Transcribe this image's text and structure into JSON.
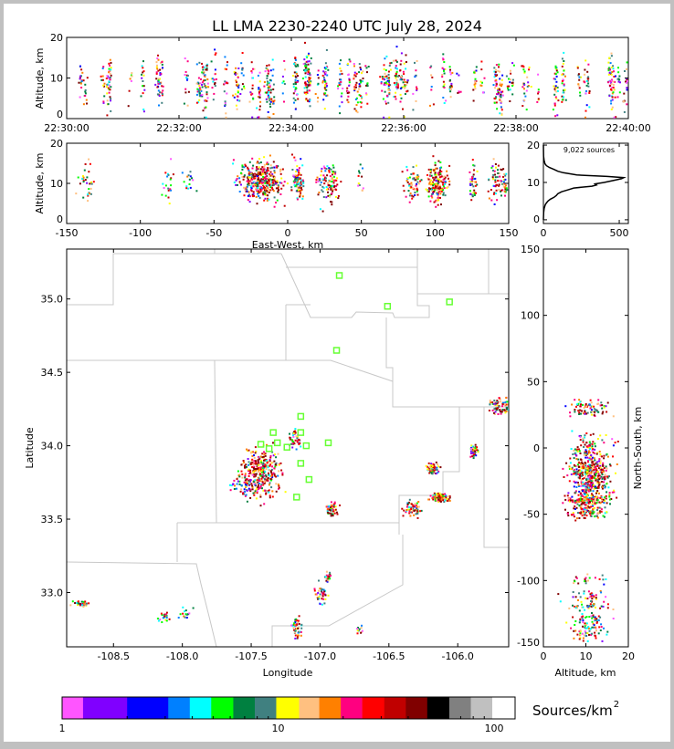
{
  "chart_data": {
    "title": "LL LMA 2230-2240 UTC July 28, 2024",
    "type": "scatter",
    "network_center": {
      "lon": -107.25,
      "lat": 34.0
    },
    "time_altitude": {
      "type": "scatter",
      "ylabel": "Altitude, km",
      "xlim": [
        "22:30:00",
        "22:40:00"
      ],
      "ylim": [
        0,
        20
      ],
      "xticks": [
        "22:30:00",
        "22:32:00",
        "22:34:00",
        "22:36:00",
        "22:38:00",
        "22:40:00"
      ],
      "yticks": [
        "0",
        "10",
        "20"
      ]
    },
    "ew_altitude": {
      "type": "scatter",
      "xlabel": "East-West, km",
      "ylabel": "Altitude, km",
      "xlim": [
        -150,
        150
      ],
      "ylim": [
        0,
        20
      ],
      "xticks": [
        "-150",
        "-100",
        "-50",
        "0",
        "50",
        "100",
        "150"
      ],
      "yticks": [
        "0",
        "10",
        "20"
      ]
    },
    "altitude_histogram": {
      "type": "line",
      "annotation": "9,022 sources",
      "xlim": [
        0,
        560
      ],
      "ylim": [
        -1,
        20.5
      ],
      "xticks": [
        "0",
        "500"
      ],
      "yticks": [
        "0",
        "10",
        "20"
      ],
      "altitude": [
        0,
        2,
        3,
        4,
        4.5,
        5,
        5.5,
        6,
        6.5,
        7,
        7.5,
        8,
        8.5,
        9,
        9.3,
        9.6,
        10,
        10.5,
        11,
        11.3,
        11.6,
        12,
        12.3,
        12.6,
        13,
        13.5,
        14,
        14.5,
        15,
        16,
        17,
        20
      ],
      "count": [
        0,
        2,
        5,
        12,
        20,
        30,
        45,
        70,
        85,
        95,
        120,
        160,
        200,
        320,
        350,
        340,
        400,
        460,
        515,
        530,
        420,
        220,
        180,
        130,
        95,
        70,
        40,
        20,
        10,
        4,
        1,
        0
      ]
    },
    "plan_view": {
      "type": "scatter",
      "xlabel": "Longitude",
      "ylabel": "Latitude",
      "xlim": [
        -108.84,
        -105.63
      ],
      "ylim": [
        32.63,
        35.34
      ],
      "xticks": [
        "-108.5",
        "-108.0",
        "-107.5",
        "-107.0",
        "-106.5",
        "-106.0"
      ],
      "yticks": [
        "33.0",
        "33.5",
        "34.0",
        "34.5",
        "35.0"
      ],
      "stations": [
        [
          -106.86,
          35.16
        ],
        [
          -106.51,
          34.95
        ],
        [
          -106.06,
          34.98
        ],
        [
          -106.88,
          34.65
        ],
        [
          -107.14,
          34.2
        ],
        [
          -107.34,
          34.09
        ],
        [
          -107.14,
          34.09
        ],
        [
          -107.43,
          34.01
        ],
        [
          -107.31,
          34.02
        ],
        [
          -107.37,
          33.98
        ],
        [
          -107.24,
          33.99
        ],
        [
          -107.1,
          34.0
        ],
        [
          -106.94,
          34.02
        ],
        [
          -107.14,
          33.88
        ],
        [
          -107.08,
          33.77
        ],
        [
          -107.17,
          33.65
        ]
      ],
      "clusters": [
        {
          "lon": -107.43,
          "lat": 33.82,
          "spread": [
            0.07,
            0.08
          ],
          "n": 320,
          "intensity": 0.7
        },
        {
          "lon": -107.55,
          "lat": 33.74,
          "spread": [
            0.06,
            0.03
          ],
          "n": 60,
          "intensity": 0.1
        },
        {
          "lon": -107.19,
          "lat": 34.05,
          "spread": [
            0.02,
            0.03
          ],
          "n": 40,
          "intensity": 0.3
        },
        {
          "lon": -106.92,
          "lat": 33.57,
          "spread": [
            0.02,
            0.02
          ],
          "n": 50,
          "intensity": 0.6
        },
        {
          "lon": -106.34,
          "lat": 33.58,
          "spread": [
            0.03,
            0.025
          ],
          "n": 60,
          "intensity": 0.5
        },
        {
          "lon": -106.14,
          "lat": 33.65,
          "spread": [
            0.03,
            0.015
          ],
          "n": 110,
          "intensity": 0.9
        },
        {
          "lon": -106.19,
          "lat": 33.85,
          "spread": [
            0.02,
            0.02
          ],
          "n": 60,
          "intensity": 0.6
        },
        {
          "lon": -105.89,
          "lat": 33.97,
          "spread": [
            0.015,
            0.02
          ],
          "n": 40,
          "intensity": 0.4
        },
        {
          "lon": -105.69,
          "lat": 34.28,
          "spread": [
            0.04,
            0.03
          ],
          "n": 80,
          "intensity": 0.5
        },
        {
          "lon": -108.74,
          "lat": 32.93,
          "spread": [
            0.04,
            0.01
          ],
          "n": 30,
          "intensity": 0.2
        },
        {
          "lon": -108.14,
          "lat": 32.84,
          "spread": [
            0.02,
            0.02
          ],
          "n": 20,
          "intensity": 0.2
        },
        {
          "lon": -107.98,
          "lat": 32.86,
          "spread": [
            0.02,
            0.02
          ],
          "n": 15,
          "intensity": 0.1
        },
        {
          "lon": -107.17,
          "lat": 32.77,
          "spread": [
            0.02,
            0.04
          ],
          "n": 50,
          "intensity": 0.4
        },
        {
          "lon": -107.0,
          "lat": 32.99,
          "spread": [
            0.02,
            0.03
          ],
          "n": 40,
          "intensity": 0.4
        },
        {
          "lon": -106.95,
          "lat": 33.11,
          "spread": [
            0.01,
            0.02
          ],
          "n": 20,
          "intensity": 0.4
        },
        {
          "lon": -106.72,
          "lat": 32.75,
          "spread": [
            0.01,
            0.02
          ],
          "n": 12,
          "intensity": 0.2
        }
      ]
    },
    "ns_altitude": {
      "type": "scatter",
      "xlabel": "Altitude, km",
      "ylabel": "North-South, km",
      "xlim": [
        0,
        20
      ],
      "ylim": [
        -150,
        150
      ],
      "xticks": [
        "0",
        "10",
        "20"
      ],
      "yticks": [
        "-150",
        "-100",
        "-50",
        "0",
        "50",
        "100",
        "150"
      ]
    },
    "colorbar": {
      "label": "Sources/km",
      "label_sup": "2",
      "scale": "log",
      "ticks": [
        "1",
        "10",
        "100"
      ],
      "boundaries": [
        1,
        1.25,
        2,
        3.1,
        3.9,
        4.9,
        6.2,
        7.8,
        9.8,
        12.5,
        15.5,
        19.5,
        24.5,
        31,
        39,
        49,
        62,
        78,
        98,
        125
      ],
      "colors": [
        "#ff55ff",
        "#8000ff",
        "#0000ff",
        "#0080ff",
        "#00ffff",
        "#00ff00",
        "#008040",
        "#408080",
        "#ffff00",
        "#ffc080",
        "#ff8000",
        "#ff0080",
        "#ff0000",
        "#c00000",
        "#800000",
        "#000000",
        "#808080",
        "#c0c0c0",
        "#ffffff"
      ]
    }
  }
}
